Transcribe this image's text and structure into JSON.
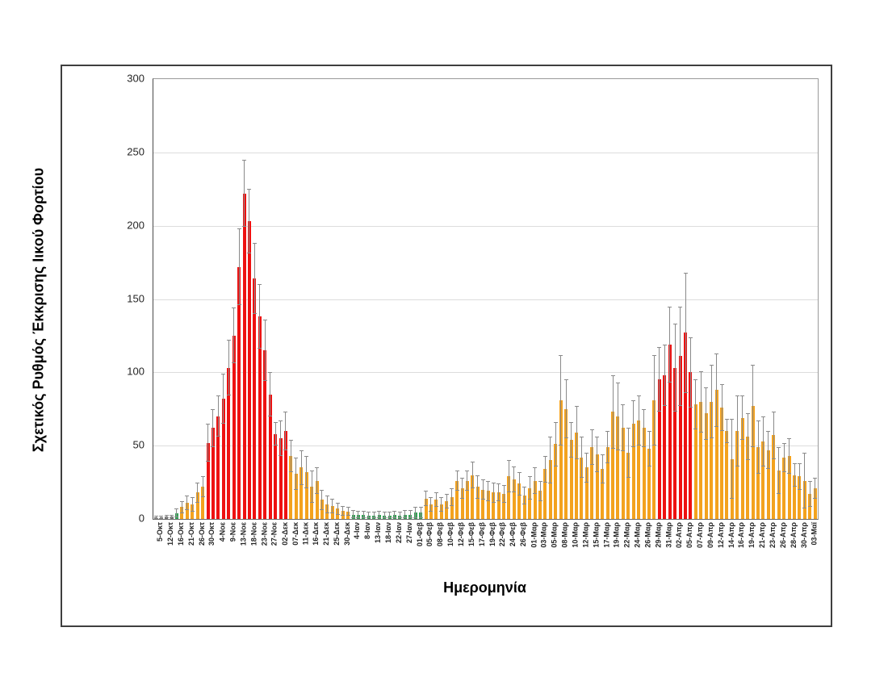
{
  "chart_data": {
    "type": "bar",
    "title": "",
    "xlabel": "Ημερομηνία",
    "ylabel": "Σχετικός Ρυθμός Έκκρισης Ιικού Φορτίου",
    "ylim": [
      0,
      300
    ],
    "yticks": [
      0,
      50,
      100,
      150,
      200,
      250,
      300
    ],
    "grid": "horizontal",
    "legend": "none",
    "bars_per_tick": 2,
    "x_tick_labels": [
      "5-Οκτ",
      "12-Οκτ",
      "16-Οκτ",
      "21-Οκτ",
      "26-Οκτ",
      "30-Οκτ",
      "4-Νοε",
      "9-Νοε",
      "13-Νοε",
      "18-Νοε",
      "23-Νοε",
      "27-Νοε",
      "02-Δεκ",
      "07-Δεκ",
      "11-Δεκ",
      "16-Δεκ",
      "21-Δεκ",
      "25-Δεκ",
      "30-Δεκ",
      "4-Ιαν",
      "8-Ιαν",
      "13-Ιαν",
      "18-Ιαν",
      "22-Ιαν",
      "27-Ιαν",
      "01-Φεβ",
      "05-Φεβ",
      "08-Φεβ",
      "10-Φεβ",
      "12-Φεβ",
      "15-Φεβ",
      "17-Φεβ",
      "19-Φεβ",
      "22-Φεβ",
      "24-Φεβ",
      "26-Φεβ",
      "01-Μαρ",
      "03-Μαρ",
      "05-Μαρ",
      "08-Μαρ",
      "10-Μαρ",
      "12-Μαρ",
      "15-Μαρ",
      "17-Μαρ",
      "19-Μαρ",
      "22-Μαρ",
      "24-Μαρ",
      "26-Μαρ",
      "29-Μαρ",
      "31-Μαρ",
      "02-Απρ",
      "05-Απρ",
      "07-Απρ",
      "09-Απρ",
      "12-Απρ",
      "14-Απρ",
      "16-Απρ",
      "19-Απρ",
      "21-Απρ",
      "23-Απρ",
      "26-Απρ",
      "28-Απρ",
      "30-Απρ",
      "03-Μαϊ"
    ],
    "values": [
      1,
      1,
      1.5,
      1.5,
      4,
      8,
      11,
      10,
      18,
      22,
      52,
      62,
      70,
      82,
      103,
      125,
      172,
      222,
      203,
      164,
      138,
      115,
      85,
      58,
      55,
      60,
      43,
      31,
      35,
      32,
      22,
      26,
      13,
      10,
      9,
      7,
      5.5,
      5,
      3,
      2.5,
      2.5,
      2,
      2,
      2.5,
      2,
      2,
      2.5,
      2,
      3,
      3,
      4.5,
      4.5,
      14,
      10,
      13,
      10,
      12,
      15,
      26,
      21,
      26,
      30,
      22,
      20,
      19,
      18,
      18,
      17,
      29,
      27,
      24,
      16,
      21,
      26,
      19,
      34,
      40,
      51,
      81,
      75,
      54,
      59,
      42,
      35,
      49,
      44,
      34,
      49,
      73,
      70,
      62,
      45,
      65,
      67,
      62,
      48,
      81,
      95,
      98,
      119,
      103,
      111,
      127,
      100,
      78,
      80,
      72,
      80,
      88,
      76,
      60,
      41,
      60,
      69,
      56,
      77,
      49,
      53,
      47,
      57,
      33,
      42,
      43,
      30,
      29,
      26,
      17,
      21
    ],
    "whisker_tops": [
      2,
      2,
      2.5,
      2.5,
      7,
      12,
      16,
      15,
      25,
      29,
      65,
      75,
      84,
      99,
      122,
      144,
      198,
      245,
      225,
      188,
      160,
      136,
      100,
      66,
      67,
      73,
      54,
      42,
      47,
      43,
      33,
      35,
      20,
      16,
      14,
      11,
      9,
      8,
      6,
      5.5,
      5.5,
      5,
      5,
      5.5,
      5,
      5,
      5.5,
      5,
      6,
      6,
      8.5,
      8.5,
      19,
      15,
      18,
      15,
      17,
      21,
      33,
      28,
      33,
      39,
      30,
      27,
      26,
      25,
      24,
      23,
      40,
      36,
      32,
      22,
      29,
      35,
      26,
      43,
      56,
      66,
      112,
      95,
      66,
      77,
      56,
      45,
      61,
      56,
      44,
      60,
      98,
      93,
      78,
      62,
      81,
      84,
      75,
      60,
      112,
      117,
      119,
      145,
      133,
      145,
      168,
      124,
      95,
      101,
      90,
      105,
      113,
      92,
      68,
      68,
      84,
      84,
      72,
      105,
      67,
      70,
      60,
      73,
      49,
      52,
      55,
      38,
      38,
      45,
      26,
      28
    ],
    "color_segments": [
      {
        "from": 0,
        "to": 3,
        "color": "gray"
      },
      {
        "from": 4,
        "to": 4,
        "color": "green"
      },
      {
        "from": 5,
        "to": 9,
        "color": "orange"
      },
      {
        "from": 10,
        "to": 25,
        "color": "red"
      },
      {
        "from": 26,
        "to": 37,
        "color": "orange"
      },
      {
        "from": 38,
        "to": 51,
        "color": "green"
      },
      {
        "from": 52,
        "to": 96,
        "color": "orange"
      },
      {
        "from": 97,
        "to": 103,
        "color": "red"
      },
      {
        "from": 104,
        "to": 127,
        "color": "orange"
      }
    ],
    "palette": {
      "red": "#ee1111",
      "orange": "#f3a21e",
      "green": "#35a356",
      "gray": "#6f6f6f",
      "whisker": "#8a8a8a",
      "gridline": "#dcdcdc"
    }
  }
}
